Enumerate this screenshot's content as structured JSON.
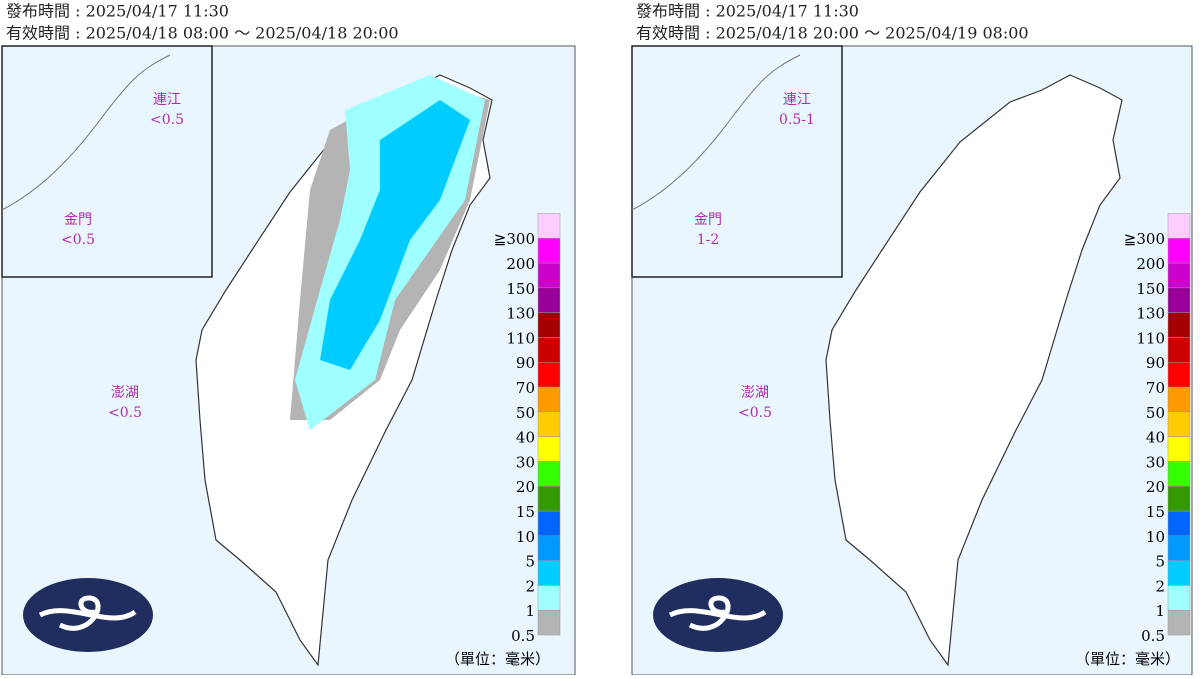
{
  "panels": [
    {
      "issued": "發布時間 : 2025/04/17 11:30",
      "valid": "有效時間 : 2025/04/18 08:00 ～ 2025/04/18 20:00",
      "islands": [
        {
          "name": "連江",
          "value": "<0.5"
        },
        {
          "name": "金門",
          "value": "<0.5"
        },
        {
          "name": "澎湖",
          "value": "<0.5"
        }
      ],
      "rain": true
    },
    {
      "issued": "發布時間 : 2025/04/17 11:30",
      "valid": "有效時間 : 2025/04/18 20:00 ～ 2025/04/19 08:00",
      "islands": [
        {
          "name": "連江",
          "value": "0.5-1"
        },
        {
          "name": "金門",
          "value": "1-2"
        },
        {
          "name": "澎湖",
          "value": "<0.5"
        }
      ],
      "rain": false
    }
  ],
  "legend": {
    "unit": "（單位：毫米）",
    "levels": [
      {
        "label": "0.5",
        "color": "#b4b4b4"
      },
      {
        "label": "1",
        "color": "#9efffe"
      },
      {
        "label": "2",
        "color": "#00ccff"
      },
      {
        "label": "5",
        "color": "#0099ff"
      },
      {
        "label": "10",
        "color": "#0066ff"
      },
      {
        "label": "15",
        "color": "#339900"
      },
      {
        "label": "20",
        "color": "#33ff00"
      },
      {
        "label": "30",
        "color": "#ffff00"
      },
      {
        "label": "40",
        "color": "#ffcc00"
      },
      {
        "label": "50",
        "color": "#ff9900"
      },
      {
        "label": "70",
        "color": "#ff0000"
      },
      {
        "label": "90",
        "color": "#cc0000"
      },
      {
        "label": "110",
        "color": "#a50000"
      },
      {
        "label": "130",
        "color": "#990099"
      },
      {
        "label": "150",
        "color": "#cc00cc"
      },
      {
        "label": "200",
        "color": "#ff00ff"
      },
      {
        "label": "≧300",
        "color": "#ffccff"
      }
    ]
  }
}
